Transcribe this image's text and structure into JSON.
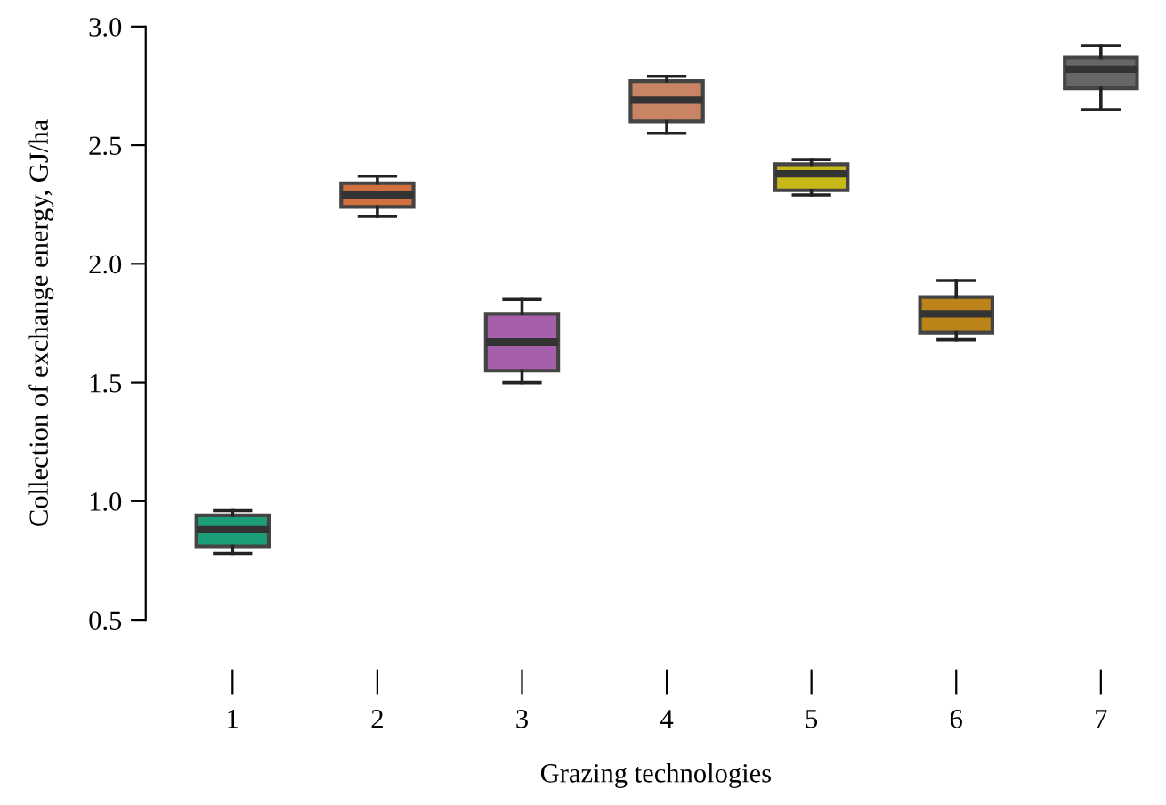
{
  "chart_data": {
    "type": "box",
    "xlabel": "Grazing technologies",
    "ylabel": "Collection of exchange energy, GJ/ha",
    "categories": [
      "1",
      "2",
      "3",
      "4",
      "5",
      "6",
      "7"
    ],
    "colors": [
      "#1b9e77",
      "#d0703c",
      "#a55fab",
      "#c98466",
      "#c8b718",
      "#bc8418",
      "#666666"
    ],
    "boxes": [
      {
        "low": 0.78,
        "q1": 0.81,
        "median": 0.88,
        "q3": 0.94,
        "high": 0.96
      },
      {
        "low": 2.2,
        "q1": 2.24,
        "median": 2.29,
        "q3": 2.34,
        "high": 2.37
      },
      {
        "low": 1.5,
        "q1": 1.55,
        "median": 1.67,
        "q3": 1.79,
        "high": 1.85
      },
      {
        "low": 2.55,
        "q1": 2.6,
        "median": 2.69,
        "q3": 2.77,
        "high": 2.79
      },
      {
        "low": 2.29,
        "q1": 2.31,
        "median": 2.38,
        "q3": 2.42,
        "high": 2.44
      },
      {
        "low": 1.68,
        "q1": 1.71,
        "median": 1.79,
        "q3": 1.86,
        "high": 1.93
      },
      {
        "low": 2.65,
        "q1": 2.74,
        "median": 2.82,
        "q3": 2.87,
        "high": 2.92
      }
    ],
    "ylim": [
      0.5,
      3.0
    ],
    "yticks": [
      0.5,
      {
        "value": 1,
        "label": "1.0"
      },
      1.5,
      {
        "value": 2,
        "label": "2.0"
      },
      2.5,
      {
        "value": 3,
        "label": "3.0"
      }
    ],
    "grid": false
  }
}
